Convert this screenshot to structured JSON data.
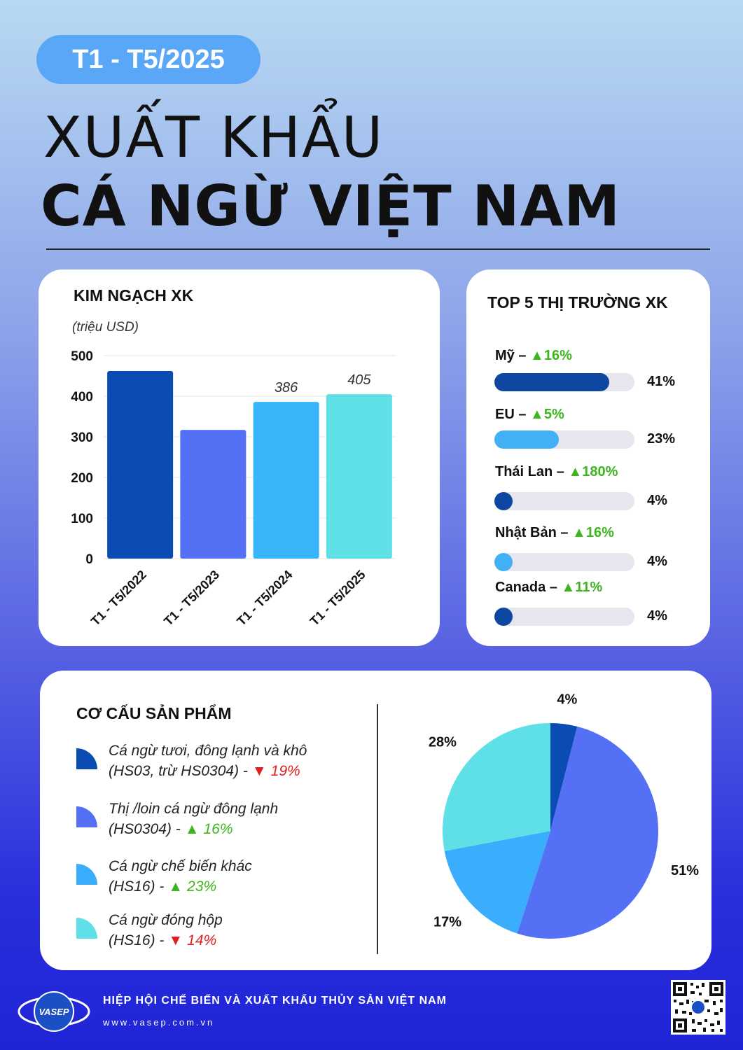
{
  "period": "T1 - T5/2025",
  "title_line1": "XUẤT KHẨU",
  "title_line2": "CÁ NGỪ VIỆT NAM",
  "bar_card": {
    "title": "KIM NGẠCH XK",
    "unit": "(triệu USD)"
  },
  "top5_card": {
    "title": "TOP 5 THỊ TRƯỜNG XK",
    "items": [
      {
        "name": "Mỹ",
        "change": "16%",
        "direction": "up",
        "share": 0.41,
        "share_label": "41%",
        "color": "#0d47a1"
      },
      {
        "name": "EU",
        "change": "5%",
        "direction": "up",
        "share": 0.23,
        "share_label": "23%",
        "color": "#42b0f5"
      },
      {
        "name": "Thái Lan",
        "change": "180%",
        "direction": "up",
        "share": 0.04,
        "share_label": "4%",
        "color": "#0d47a1"
      },
      {
        "name": "Nhật Bản",
        "change": "16%",
        "direction": "up",
        "share": 0.04,
        "share_label": "4%",
        "color": "#42b0f5"
      },
      {
        "name": "Canada",
        "change": "11%",
        "direction": "up",
        "share": 0.04,
        "share_label": "4%",
        "color": "#0d47a1"
      }
    ]
  },
  "struct_card": {
    "title": "CƠ CẤU SẢN PHẨM",
    "legend": [
      {
        "line1": "Cá ngừ tươi, đông lạnh và khô",
        "line2": "(HS03, trừ HS0304) -",
        "change": "19%",
        "direction": "down",
        "color": "#0b4cb3"
      },
      {
        "line1": "Thị /loin cá ngừ đông lạnh",
        "line2": "(HS0304)  -",
        "change": "16%",
        "direction": "up",
        "color": "#5470f5"
      },
      {
        "line1": "Cá ngừ chế biến khác",
        "line2": "(HS16) -",
        "change": "23%",
        "direction": "up",
        "color": "#3aaefc"
      },
      {
        "line1": "Cá ngừ đóng hộp",
        "line2": "(HS16) -",
        "change": "14%",
        "direction": "down",
        "color": "#5fe0e6"
      }
    ]
  },
  "footer": {
    "org": "HIỆP HỘI CHẾ BIẾN VÀ XUẤT KHẨU THỦY SẢN VIỆT NAM",
    "url": "www.vasep.com.vn",
    "logo_text": "VASEP"
  },
  "chart_data": [
    {
      "type": "bar",
      "categories": [
        "T1 - T5/2022",
        "T1 - T5/2023",
        "T1 - T5/2024",
        "T1 - T5/2025"
      ],
      "values": [
        462,
        317,
        386,
        405
      ],
      "data_labels": [
        "",
        "",
        "386",
        "405"
      ],
      "colors": [
        "#0b4cb3",
        "#5470f5",
        "#3ab5fc",
        "#5fe0e6"
      ],
      "ylim": [
        0,
        500
      ],
      "yticks": [
        0,
        100,
        200,
        300,
        400,
        500
      ],
      "grid": true,
      "title": "KIM NGẠCH XK",
      "xlabel": "",
      "ylabel": "(triệu USD)"
    },
    {
      "type": "pie",
      "labels": [
        "Cá ngừ tươi, đông lạnh và khô",
        "Thị /loin cá ngừ đông lạnh",
        "Cá ngừ chế biến khác",
        "Cá ngừ đóng hộp"
      ],
      "values": [
        4,
        51,
        17,
        28
      ],
      "value_labels": [
        "4%",
        "51%",
        "17%",
        "28%"
      ],
      "colors": [
        "#0b4cb3",
        "#5470f5",
        "#3aaefc",
        "#5fe0e6"
      ],
      "start": "12 o'clock, clockwise"
    }
  ]
}
